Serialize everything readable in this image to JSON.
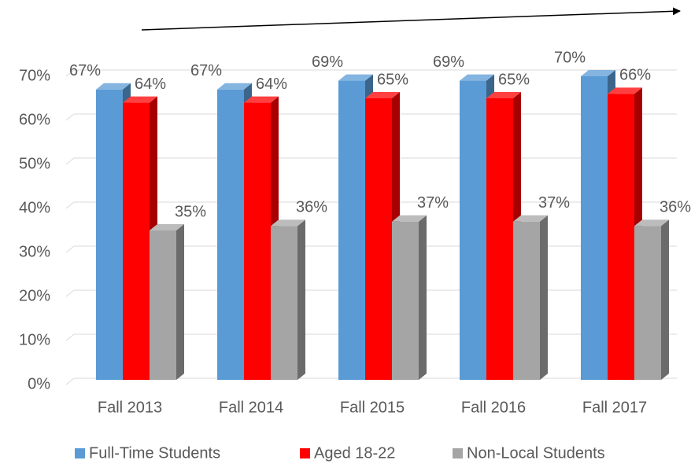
{
  "chart_data": {
    "type": "bar3d",
    "categories": [
      "Fall 2013",
      "Fall 2014",
      "Fall 2015",
      "Fall 2016",
      "Fall 2017"
    ],
    "series": [
      {
        "name": "Full-Time Students",
        "color": "#5b9bd5",
        "values": [
          67,
          67,
          69,
          69,
          70
        ],
        "value_labels": [
          "67%",
          "67%",
          "69%",
          "69%",
          "70%"
        ]
      },
      {
        "name": "Aged 18-22",
        "color": "#ff0000",
        "values": [
          64,
          64,
          65,
          65,
          66
        ],
        "value_labels": [
          "64%",
          "64%",
          "65%",
          "65%",
          "66%"
        ]
      },
      {
        "name": "Non-Local Students",
        "color": "#a5a5a5",
        "values": [
          35,
          36,
          37,
          37,
          36
        ],
        "value_labels": [
          "35%",
          "36%",
          "37%",
          "37%",
          "36%"
        ]
      }
    ],
    "ylim": [
      0,
      70
    ],
    "yticks": [
      {
        "value": 0,
        "label": "0%"
      },
      {
        "value": 10,
        "label": "10%"
      },
      {
        "value": 20,
        "label": "20%"
      },
      {
        "value": 30,
        "label": "30%"
      },
      {
        "value": 40,
        "label": "40%"
      },
      {
        "value": 50,
        "label": "50%"
      },
      {
        "value": 60,
        "label": "60%"
      },
      {
        "value": 70,
        "label": "70%"
      }
    ],
    "grid": true,
    "legend": "bottom"
  }
}
